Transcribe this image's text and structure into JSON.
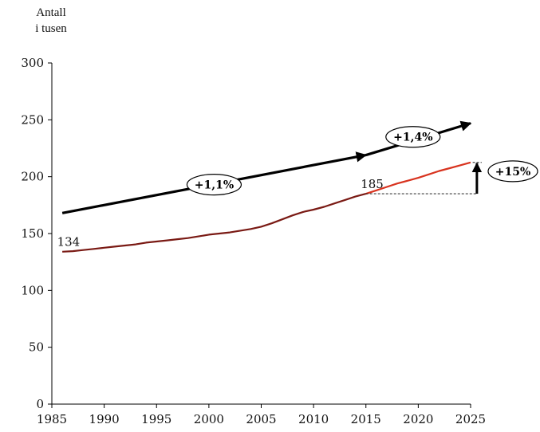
{
  "chart_data": {
    "type": "line",
    "ylabel_lines": [
      "Antall",
      "i tusen"
    ],
    "xlim": [
      1985,
      2025
    ],
    "ylim": [
      0,
      300
    ],
    "x_ticks": [
      1985,
      1990,
      1995,
      2000,
      2005,
      2010,
      2015,
      2020,
      2025
    ],
    "y_ticks": [
      0,
      50,
      100,
      150,
      200,
      250,
      300
    ],
    "grid": false,
    "colors": {
      "historical": "#7a1a14",
      "projection": "#d8331f",
      "arrow": "#000000"
    },
    "series": [
      {
        "x": [
          1986,
          1987,
          1988,
          1989,
          1990,
          1991,
          1992,
          1993,
          1994,
          1995,
          1996,
          1997,
          1998,
          1999,
          2000,
          2001,
          2002,
          2003,
          2004,
          2005,
          2006,
          2007,
          2008,
          2009,
          2010,
          2011,
          2012,
          2013,
          2014,
          2015
        ],
        "values": [
          134,
          134.5,
          135.5,
          136.5,
          137.5,
          138.5,
          139.5,
          140.5,
          142,
          143,
          144,
          145,
          146,
          147.5,
          149,
          150,
          151,
          152.5,
          154,
          156,
          159,
          162.5,
          166,
          169,
          171,
          173.5,
          176.5,
          179.5,
          182.5,
          185
        ]
      },
      {
        "x": [
          2015,
          2016,
          2017,
          2018,
          2019,
          2020,
          2021,
          2022,
          2023,
          2024,
          2025
        ],
        "values": [
          185,
          188,
          191,
          194,
          196.5,
          199,
          202,
          205,
          207.5,
          210,
          212.5
        ]
      }
    ],
    "data_labels": [
      {
        "x": 1985.5,
        "y": 139,
        "text": "134"
      },
      {
        "x": 2014.5,
        "y": 190,
        "text": "185"
      }
    ],
    "trend_arrows": [
      {
        "x1": 1986,
        "y1": 168,
        "x2": 2015,
        "y2": 219,
        "label": "+1,1%",
        "label_x": 2000.5,
        "label_y": 193
      },
      {
        "x1": 2015,
        "y1": 219,
        "x2": 2025,
        "y2": 247,
        "label": "+1,4%",
        "label_x": 2019.5,
        "label_y": 235
      }
    ],
    "change_arrow": {
      "x": 2025.6,
      "from": 185,
      "to": 212.5,
      "label": "+15%"
    }
  }
}
